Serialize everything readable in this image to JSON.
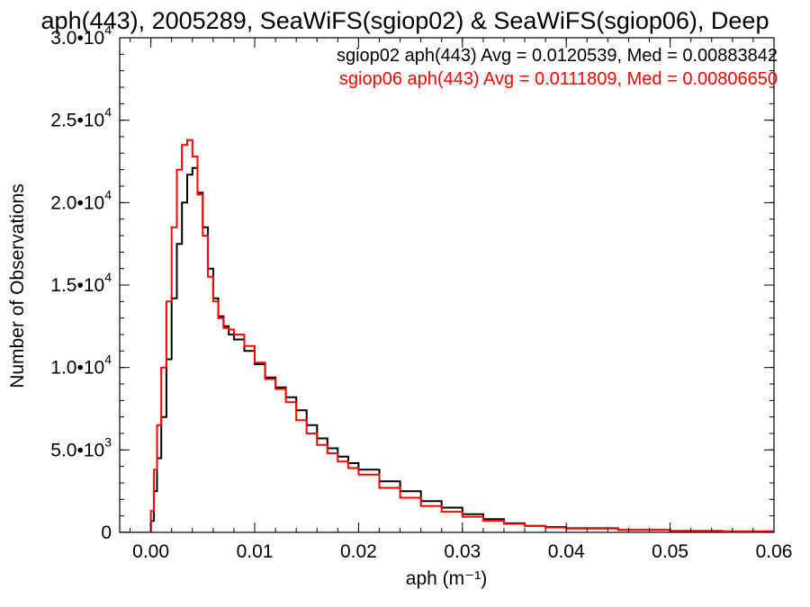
{
  "chart_data": {
    "type": "line",
    "title": "aph(443), 2005289, SeaWiFS(sgiop02) & SeaWiFS(sgiop06), Deep",
    "xlabel": "aph (m⁻¹)",
    "ylabel": "Number of Observations",
    "xlim": [
      -0.003,
      0.06
    ],
    "ylim": [
      0,
      30000
    ],
    "x_ticks": [
      {
        "value": 0.0,
        "label": "0.00"
      },
      {
        "value": 0.01,
        "label": "0.01"
      },
      {
        "value": 0.02,
        "label": "0.02"
      },
      {
        "value": 0.03,
        "label": "0.03"
      },
      {
        "value": 0.04,
        "label": "0.04"
      },
      {
        "value": 0.05,
        "label": "0.05"
      },
      {
        "value": 0.06,
        "label": "0.06"
      }
    ],
    "y_ticks": [
      {
        "value": 0,
        "mant": "0",
        "exp": ""
      },
      {
        "value": 5000,
        "mant": "5.0•10",
        "exp": "3"
      },
      {
        "value": 10000,
        "mant": "1.0•10",
        "exp": "4"
      },
      {
        "value": 15000,
        "mant": "1.5•10",
        "exp": "4"
      },
      {
        "value": 20000,
        "mant": "2.0•10",
        "exp": "4"
      },
      {
        "value": 25000,
        "mant": "2.5•10",
        "exp": "4"
      },
      {
        "value": 30000,
        "mant": "3.0•10",
        "exp": "4"
      }
    ],
    "grid": false,
    "legend_position": "top-right",
    "series": [
      {
        "name": "sgiop02 aph(443) Avg = 0.0120539, Med = 0.00883842",
        "color": "#000000",
        "x": [
          -0.003,
          -0.0002,
          0.0,
          0.0003,
          0.0006,
          0.001,
          0.0015,
          0.002,
          0.0025,
          0.003,
          0.0035,
          0.004,
          0.0045,
          0.005,
          0.0055,
          0.006,
          0.0065,
          0.007,
          0.0075,
          0.008,
          0.009,
          0.01,
          0.011,
          0.012,
          0.013,
          0.014,
          0.015,
          0.016,
          0.017,
          0.018,
          0.019,
          0.02,
          0.022,
          0.024,
          0.026,
          0.028,
          0.03,
          0.032,
          0.034,
          0.036,
          0.038,
          0.04,
          0.045,
          0.05,
          0.055,
          0.06
        ],
        "y": [
          0,
          0,
          700,
          2500,
          4500,
          7000,
          10500,
          14200,
          17500,
          20000,
          21700,
          22100,
          20600,
          18500,
          16000,
          14200,
          13100,
          12500,
          12000,
          11700,
          11000,
          10200,
          9400,
          8800,
          8200,
          7400,
          6500,
          5700,
          5100,
          4600,
          4200,
          3800,
          3100,
          2500,
          1900,
          1500,
          1100,
          800,
          550,
          400,
          330,
          250,
          150,
          90,
          60,
          40
        ]
      },
      {
        "name": "sgiop06 aph(443) Avg = 0.0111809, Med = 0.00806650",
        "color": "#ff0000",
        "x": [
          -0.003,
          -0.0002,
          0.0,
          0.0003,
          0.0006,
          0.001,
          0.0015,
          0.002,
          0.0025,
          0.003,
          0.0035,
          0.004,
          0.0045,
          0.005,
          0.0055,
          0.006,
          0.0065,
          0.007,
          0.0075,
          0.008,
          0.009,
          0.01,
          0.011,
          0.012,
          0.013,
          0.014,
          0.015,
          0.016,
          0.017,
          0.018,
          0.019,
          0.02,
          0.022,
          0.024,
          0.026,
          0.028,
          0.03,
          0.032,
          0.034,
          0.036,
          0.038,
          0.04,
          0.045,
          0.05,
          0.055,
          0.06
        ],
        "y": [
          0,
          0,
          1300,
          3800,
          6500,
          10000,
          14000,
          18500,
          22000,
          23500,
          23800,
          22800,
          20500,
          18000,
          15500,
          14000,
          13000,
          12400,
          12300,
          12000,
          11300,
          10300,
          9300,
          8700,
          7900,
          6800,
          6000,
          5300,
          4800,
          4300,
          3900,
          3500,
          2700,
          2100,
          1600,
          1250,
          950,
          700,
          520,
          390,
          300,
          230,
          140,
          90,
          60,
          40
        ]
      }
    ]
  }
}
